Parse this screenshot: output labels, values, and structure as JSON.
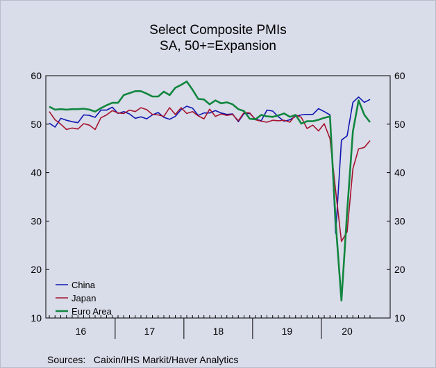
{
  "chart_data": {
    "type": "line",
    "title": "Select Composite PMIs",
    "subtitle": "SA, 50+=Expansion",
    "source": "Sources:   Caixin/IHS Markit/Haver Analytics",
    "x_start_label": "16",
    "year_labels": [
      "16",
      "17",
      "18",
      "19",
      "20"
    ],
    "ylim": [
      10,
      60
    ],
    "yticks": [
      10,
      20,
      30,
      40,
      50,
      60
    ],
    "grid": false,
    "legend_position": "bottom-left",
    "series": [
      {
        "name": "China",
        "color": "#0e16b0",
        "values": [
          50.2,
          49.4,
          51.2,
          50.8,
          50.5,
          50.3,
          51.9,
          51.8,
          51.4,
          52.9,
          52.9,
          53.5,
          52.2,
          52.6,
          52.1,
          51.2,
          51.5,
          51.1,
          51.9,
          52.4,
          51.4,
          51.0,
          51.6,
          53.0,
          53.7,
          53.3,
          51.8,
          52.3,
          52.3,
          52.8,
          52.3,
          52.0,
          52.1,
          50.5,
          52.2,
          52.2,
          51.0,
          50.7,
          52.9,
          52.7,
          51.5,
          50.6,
          50.9,
          51.6,
          51.9,
          52.0,
          52.0,
          53.2,
          52.6,
          51.9,
          27.5,
          46.7,
          47.6,
          54.5,
          55.6,
          54.5,
          55.1
        ]
      },
      {
        "name": "Japan",
        "color": "#a6142e",
        "values": [
          52.6,
          50.9,
          50.0,
          48.9,
          49.2,
          49.0,
          50.1,
          49.8,
          48.9,
          51.3,
          51.9,
          52.8,
          52.3,
          52.2,
          52.9,
          52.6,
          53.4,
          53.0,
          52.0,
          51.9,
          51.6,
          53.4,
          52.0,
          53.4,
          52.2,
          52.6,
          51.7,
          51.1,
          53.1,
          51.6,
          52.1,
          51.8,
          52.0,
          50.7,
          52.4,
          52.3,
          50.9,
          50.6,
          50.4,
          50.8,
          50.7,
          50.8,
          50.4,
          51.9,
          51.4,
          49.1,
          49.8,
          48.6,
          50.1,
          47.0,
          36.2,
          25.8,
          27.8,
          40.8,
          44.9,
          45.2,
          46.6
        ]
      },
      {
        "name": "Euro Area",
        "color": "#10863e",
        "values": [
          53.6,
          53.0,
          53.1,
          53.0,
          53.1,
          53.1,
          53.2,
          53.0,
          52.6,
          53.3,
          53.9,
          54.4,
          54.4,
          56.0,
          56.4,
          56.8,
          56.8,
          56.3,
          55.7,
          55.7,
          56.7,
          56.0,
          57.5,
          58.1,
          58.8,
          57.1,
          55.2,
          55.1,
          54.1,
          54.9,
          54.3,
          54.5,
          54.1,
          53.1,
          52.7,
          51.1,
          51.0,
          51.9,
          51.6,
          51.5,
          51.8,
          52.2,
          51.5,
          51.9,
          50.1,
          50.6,
          50.6,
          50.9,
          51.3,
          51.6,
          29.7,
          13.6,
          31.9,
          48.5,
          54.9,
          51.9,
          50.4
        ]
      }
    ]
  }
}
